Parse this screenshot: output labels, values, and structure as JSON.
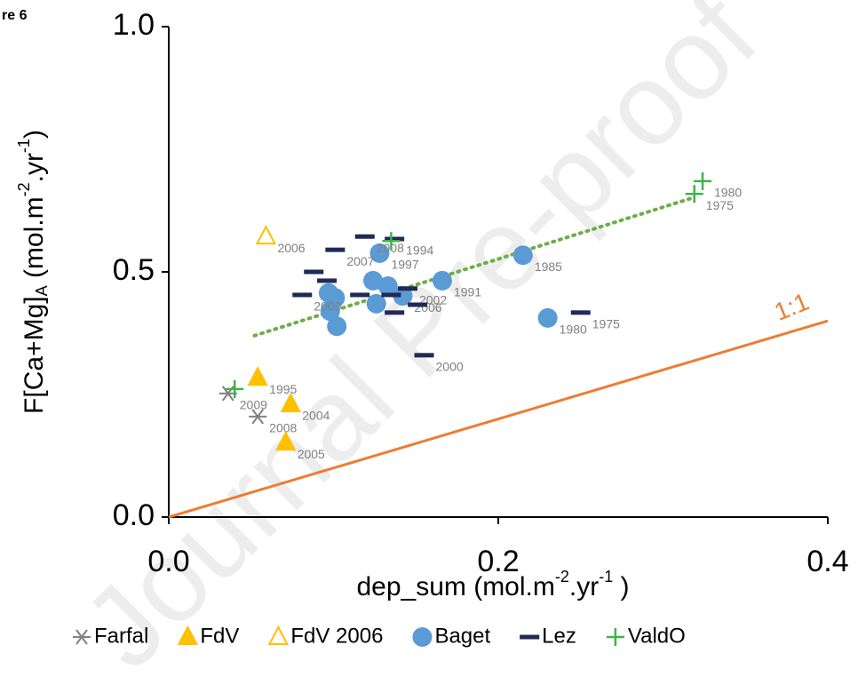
{
  "figure_label": "re 6",
  "watermark": "Journal Pre-proof",
  "chart_data": {
    "type": "scatter",
    "xlabel": [
      "dep_sum (mol.m",
      "-2",
      ".yr",
      "-1",
      " )"
    ],
    "ylabel": [
      "F[Ca+Mg]",
      "A",
      " (mol.m",
      "-2",
      ".yr",
      "-1",
      ")"
    ],
    "xlim": [
      0,
      0.4
    ],
    "ylim": [
      0,
      1
    ],
    "xticks": [
      {
        "value": 0,
        "label": "0.0"
      },
      0.2,
      0.4
    ],
    "yticks": [
      {
        "value": 0,
        "label": "0.0"
      },
      0.5,
      {
        "value": 1,
        "label": "1.0"
      }
    ],
    "grid": false,
    "legend": "bottom",
    "series": [
      {
        "name": "Farfal",
        "color": "#808080",
        "marker": "asterisk",
        "x": [
          0.036,
          0.054
        ],
        "values": [
          0.252,
          0.205
        ],
        "labels": [
          "2009",
          "2008"
        ]
      },
      {
        "name": "FdV",
        "color": "#ffc000",
        "marker": "triangle",
        "x": [
          0.054,
          0.074,
          0.071
        ],
        "values": [
          0.284,
          0.23,
          0.152
        ],
        "labels": [
          "1995",
          "2004",
          "2005"
        ]
      },
      {
        "name": "FdV 2006",
        "color": "#ffc000",
        "marker": "triangle-open",
        "x": [
          0.059
        ],
        "values": [
          0.572
        ],
        "labels": [
          "2006"
        ]
      },
      {
        "name": "Baget",
        "color": "#5b9bd5",
        "marker": "circle",
        "x": [
          0.128,
          0.215,
          0.23,
          0.166,
          0.142,
          0.124,
          0.133,
          0.097,
          0.101,
          0.126,
          0.098,
          0.102
        ],
        "values": [
          0.538,
          0.534,
          0.406,
          0.482,
          0.451,
          0.482,
          0.471,
          0.457,
          0.447,
          0.435,
          0.42,
          0.389
        ],
        "labels": [
          "1997",
          "1985",
          "1980",
          "1991",
          "2006",
          null,
          null,
          null,
          null,
          null,
          null,
          null
        ]
      },
      {
        "name": "Lez",
        "color": "#1f2a55",
        "marker": "dash",
        "x": [
          0.101,
          0.119,
          0.137,
          0.088,
          0.096,
          0.081,
          0.116,
          0.135,
          0.145,
          0.151,
          0.137,
          0.155,
          0.25
        ],
        "values": [
          0.545,
          0.572,
          0.567,
          0.5,
          0.482,
          0.453,
          0.453,
          0.453,
          0.466,
          0.433,
          0.417,
          0.33,
          0.417
        ],
        "labels": [
          "2007",
          "2008",
          "1994",
          null,
          null,
          "2009",
          null,
          null,
          "2002",
          null,
          null,
          "2000",
          "1975"
        ]
      },
      {
        "name": "ValdO",
        "color": "#3cb54a",
        "marker": "plus",
        "x": [
          0.04,
          0.135,
          0.319,
          0.324
        ],
        "values": [
          0.261,
          0.563,
          0.659,
          0.685
        ],
        "labels": [
          null,
          null,
          "1975",
          "1980"
        ]
      }
    ],
    "trendline": {
      "color": "#70ad47",
      "x": [
        0.052,
        0.319
      ],
      "values": [
        0.37,
        0.652
      ]
    },
    "reference_line": {
      "label": "1:1",
      "color": "#ed7d31",
      "x": [
        0,
        0.4
      ],
      "values": [
        0,
        0.4
      ]
    }
  }
}
